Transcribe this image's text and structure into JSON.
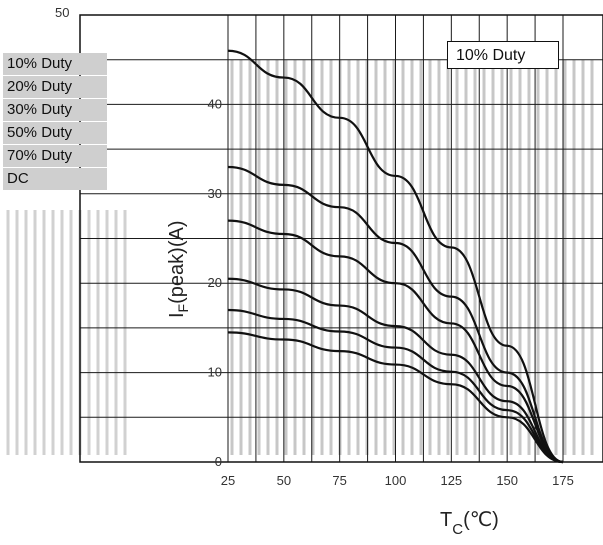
{
  "chart_data": {
    "type": "line",
    "title": "",
    "xlabel": "T_C(℃)",
    "ylabel": "I_F(peak)(A)",
    "xlim": [
      25,
      175
    ],
    "ylim": [
      0,
      45
    ],
    "x_ticks": [
      "25",
      "50",
      "75",
      "100",
      "125",
      "150",
      "175"
    ],
    "y_ticks": [
      "0",
      "10",
      "20",
      "30",
      "40"
    ],
    "top_clipped_tick": "50",
    "xlabel_main": "T",
    "xlabel_sub": "C",
    "xlabel_unit": "(℃)",
    "ylabel_main": "I",
    "ylabel_sub": "F",
    "ylabel_rest": "(peak)(A)",
    "series": [
      {
        "name": "10% Duty",
        "x": [
          25,
          50,
          75,
          100,
          125,
          150,
          175
        ],
        "values": [
          46,
          43,
          38.5,
          32,
          24,
          13,
          0
        ]
      },
      {
        "name": "20% Duty",
        "x": [
          25,
          50,
          75,
          100,
          125,
          150,
          175
        ],
        "values": [
          33,
          31,
          28.5,
          24.5,
          18.5,
          10,
          0
        ]
      },
      {
        "name": "30% Duty",
        "x": [
          25,
          50,
          75,
          100,
          125,
          150,
          175
        ],
        "values": [
          27,
          25.5,
          23,
          20,
          15.5,
          8.5,
          0
        ]
      },
      {
        "name": "50% Duty",
        "x": [
          25,
          50,
          75,
          100,
          125,
          150,
          175
        ],
        "values": [
          20.5,
          19.3,
          17.5,
          15.2,
          12,
          6.8,
          0
        ]
      },
      {
        "name": "70% Duty",
        "x": [
          25,
          50,
          75,
          100,
          125,
          150,
          175
        ],
        "values": [
          17,
          16,
          14.6,
          12.8,
          10.1,
          5.8,
          0
        ]
      },
      {
        "name": "DC",
        "x": [
          25,
          50,
          75,
          100,
          125,
          150,
          175
        ],
        "values": [
          14.5,
          13.7,
          12.4,
          10.9,
          8.7,
          5,
          0
        ]
      }
    ],
    "legend": {
      "placement": "left",
      "items": [
        "10% Duty",
        "20% Duty",
        "30% Duty",
        "50% Duty",
        "70% Duty",
        "DC"
      ],
      "boxed_label": "10% Duty"
    },
    "grid": true,
    "colors": {
      "line": "#111111",
      "grid": "#1a1a1a",
      "hatch": "#9a9a9a"
    }
  }
}
